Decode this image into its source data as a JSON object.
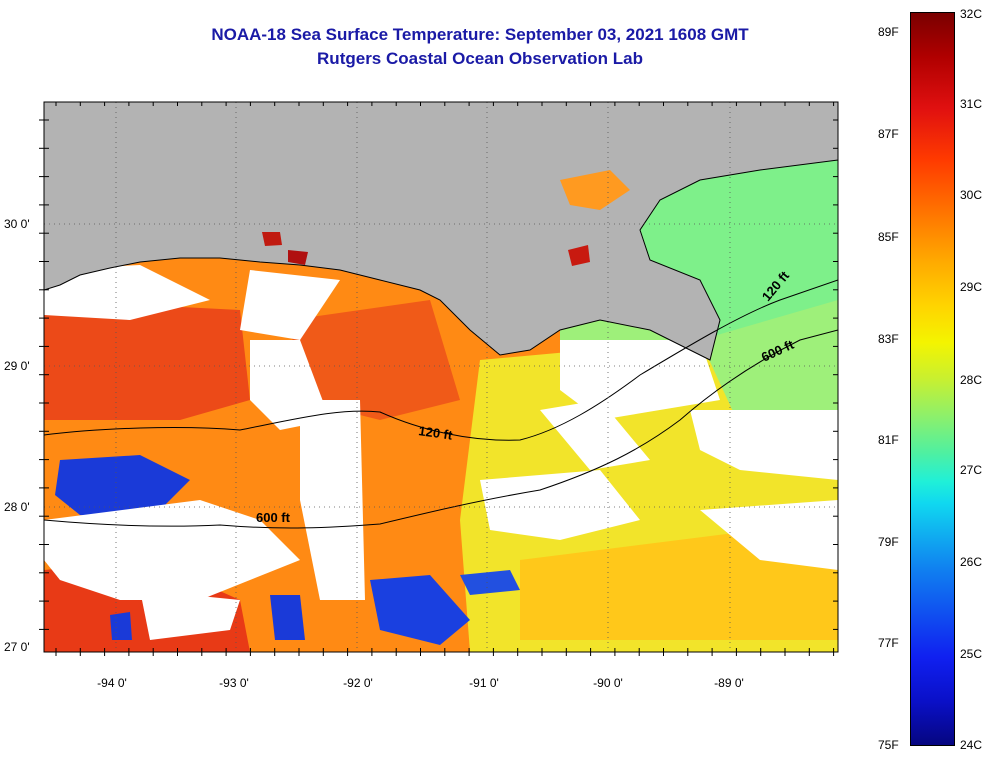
{
  "title_line1": "NOAA-18 Sea Surface Temperature:  September 03, 2021 1608 GMT",
  "title_line2": "Rutgers Coastal Ocean Observation Lab",
  "x_axis_labels": [
    "-94 0'",
    "-93 0'",
    "-92 0'",
    "-91 0'",
    "-90 0'",
    "-89 0'"
  ],
  "y_axis_labels": [
    "30 0'",
    "29 0'",
    "28 0'",
    "27 0'"
  ],
  "contour_labels": {
    "c120_west": "120 ft",
    "c600_west": "600 ft",
    "c120_east": "120 ft",
    "c600_east": "600 ft"
  },
  "colorbar": {
    "fahrenheit": [
      "89F",
      "87F",
      "85F",
      "83F",
      "81F",
      "79F",
      "77F",
      "75F"
    ],
    "celsius": [
      "32C",
      "31C",
      "30C",
      "29C",
      "28C",
      "27C",
      "26C",
      "25C",
      "24C"
    ]
  },
  "colors": {
    "land": "#b3b3b3",
    "cloud": "#ffffff",
    "warm": "#ff6a10",
    "hot": "#e8301a",
    "mid": "#ffae1a",
    "yellow": "#f0e82a",
    "green": "#8ef06a",
    "cool": "#1a3ad8",
    "title": "#1a1aa6"
  }
}
